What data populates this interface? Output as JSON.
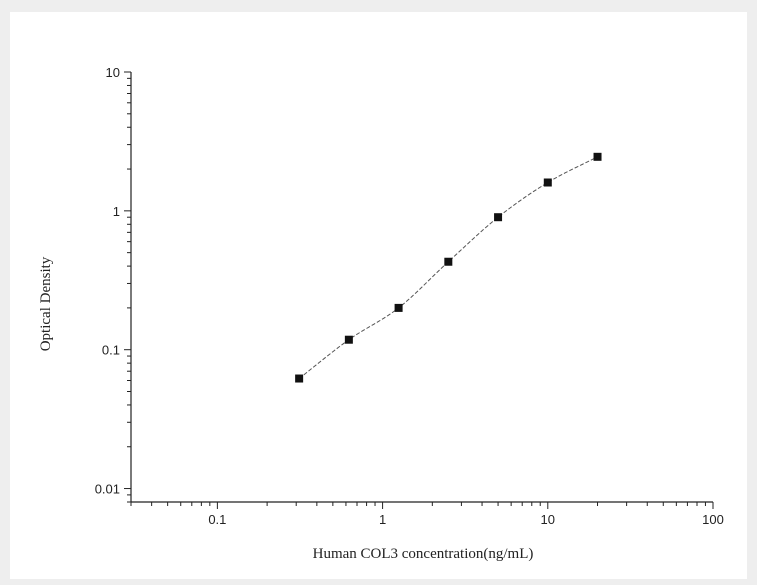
{
  "chart_data": {
    "type": "scatter",
    "title": "",
    "xlabel": "Human COL3 concentration(ng/mL)",
    "ylabel": "Optical Density",
    "x_scale": "log",
    "y_scale": "log",
    "xlim": [
      0.03,
      100
    ],
    "ylim": [
      0.008,
      10
    ],
    "x_ticks": [
      0.1,
      1,
      10,
      100
    ],
    "x_tick_labels": [
      "0.1",
      "1",
      "10",
      "100"
    ],
    "y_ticks": [
      0.01,
      0.1,
      1,
      10
    ],
    "y_tick_labels": [
      "0.01",
      "0.1",
      "1",
      "10"
    ],
    "grid": false,
    "legend": "none",
    "series": [
      {
        "x": [
          0.3125,
          0.625,
          1.25,
          2.5,
          5,
          10,
          20
        ],
        "y": [
          0.062,
          0.118,
          0.2,
          0.43,
          0.9,
          1.6,
          2.45
        ],
        "marker": "square",
        "fit_curve": true
      }
    ],
    "colors": {
      "marker": "#111111",
      "curve": "#555555",
      "axis": "#222222"
    }
  }
}
